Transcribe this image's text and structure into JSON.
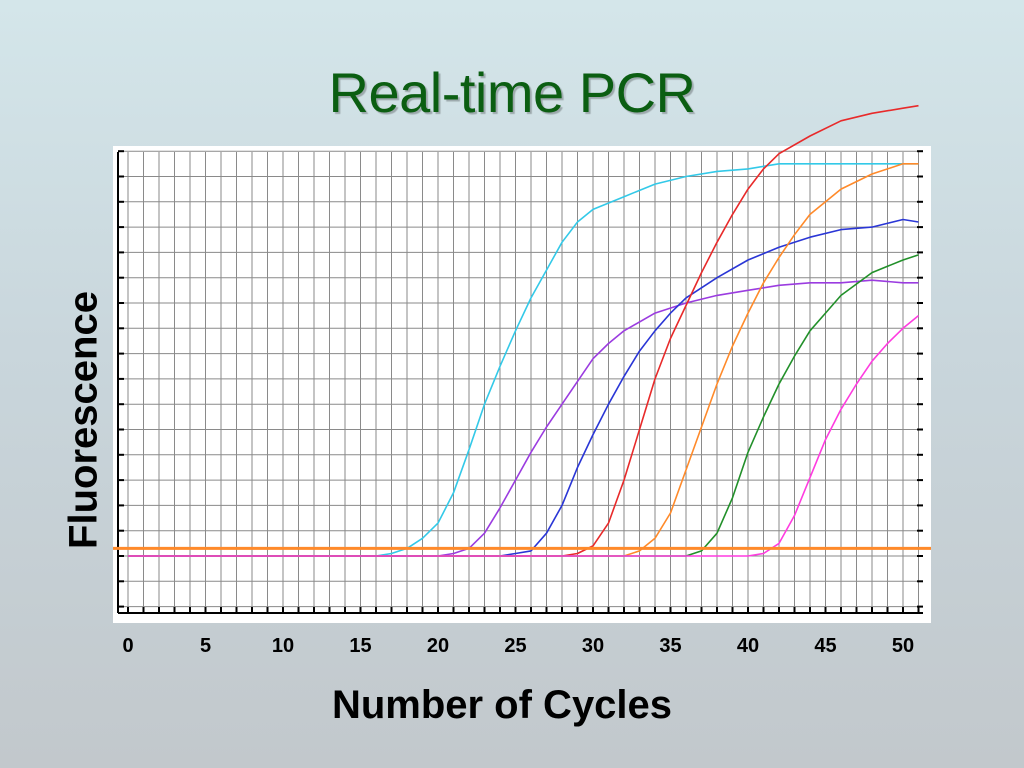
{
  "slide": {
    "title": "Real-time PCR"
  },
  "chart_data": {
    "type": "line",
    "xlabel": "Number of Cycles",
    "ylabel": "Fluorescence",
    "xticks": [
      0,
      5,
      10,
      15,
      20,
      25,
      30,
      35,
      40,
      45,
      50
    ],
    "xlim": [
      0,
      52
    ],
    "ylim": [
      -2,
      17
    ],
    "grid": true,
    "threshold": {
      "y": 0.3,
      "color": "#ff8a2a"
    },
    "series": [
      {
        "color": "#33c9e8",
        "points": [
          [
            0,
            0
          ],
          [
            16,
            0
          ],
          [
            17,
            0.1
          ],
          [
            18,
            0.3
          ],
          [
            19,
            0.7
          ],
          [
            20,
            1.3
          ],
          [
            21,
            2.5
          ],
          [
            22,
            4.2
          ],
          [
            23,
            6.0
          ],
          [
            24,
            7.5
          ],
          [
            25,
            8.9
          ],
          [
            26,
            10.2
          ],
          [
            27,
            11.3
          ],
          [
            28,
            12.4
          ],
          [
            29,
            13.2
          ],
          [
            30,
            13.7
          ],
          [
            32,
            14.2
          ],
          [
            34,
            14.7
          ],
          [
            36,
            15.0
          ],
          [
            38,
            15.2
          ],
          [
            40,
            15.3
          ],
          [
            42,
            15.5
          ],
          [
            44,
            15.5
          ],
          [
            46,
            15.5
          ],
          [
            48,
            15.5
          ],
          [
            50,
            15.5
          ],
          [
            51,
            15.5
          ]
        ]
      },
      {
        "color": "#9b3ce0",
        "points": [
          [
            0,
            0
          ],
          [
            20,
            0
          ],
          [
            21,
            0.1
          ],
          [
            22,
            0.3
          ],
          [
            23,
            0.9
          ],
          [
            24,
            1.9
          ],
          [
            25,
            3.0
          ],
          [
            26,
            4.1
          ],
          [
            27,
            5.1
          ],
          [
            28,
            6.0
          ],
          [
            29,
            6.9
          ],
          [
            30,
            7.8
          ],
          [
            31,
            8.4
          ],
          [
            32,
            8.9
          ],
          [
            34,
            9.6
          ],
          [
            36,
            10.0
          ],
          [
            38,
            10.3
          ],
          [
            40,
            10.5
          ],
          [
            42,
            10.7
          ],
          [
            44,
            10.8
          ],
          [
            46,
            10.8
          ],
          [
            48,
            10.9
          ],
          [
            50,
            10.8
          ],
          [
            51,
            10.8
          ]
        ]
      },
      {
        "color": "#2a36d6",
        "points": [
          [
            0,
            0
          ],
          [
            24,
            0
          ],
          [
            25,
            0.1
          ],
          [
            26,
            0.2
          ],
          [
            27,
            0.9
          ],
          [
            28,
            2.0
          ],
          [
            29,
            3.5
          ],
          [
            30,
            4.8
          ],
          [
            31,
            6.0
          ],
          [
            32,
            7.1
          ],
          [
            33,
            8.1
          ],
          [
            34,
            8.9
          ],
          [
            35,
            9.6
          ],
          [
            36,
            10.2
          ],
          [
            38,
            11.0
          ],
          [
            40,
            11.7
          ],
          [
            42,
            12.2
          ],
          [
            44,
            12.6
          ],
          [
            46,
            12.9
          ],
          [
            48,
            13.0
          ],
          [
            50,
            13.3
          ],
          [
            51,
            13.2
          ]
        ]
      },
      {
        "color": "#e82a2a",
        "points": [
          [
            0,
            0
          ],
          [
            28,
            0
          ],
          [
            29,
            0.1
          ],
          [
            30,
            0.4
          ],
          [
            31,
            1.3
          ],
          [
            32,
            3.0
          ],
          [
            33,
            5.0
          ],
          [
            34,
            7.0
          ],
          [
            35,
            8.6
          ],
          [
            36,
            9.9
          ],
          [
            37,
            11.2
          ],
          [
            38,
            12.4
          ],
          [
            39,
            13.5
          ],
          [
            40,
            14.5
          ],
          [
            41,
            15.3
          ],
          [
            42,
            15.9
          ],
          [
            44,
            16.6
          ],
          [
            46,
            17.2
          ],
          [
            48,
            17.5
          ],
          [
            50,
            17.7
          ],
          [
            51,
            17.8
          ]
        ]
      },
      {
        "color": "#ff8a2a",
        "points": [
          [
            0,
            0
          ],
          [
            32,
            0
          ],
          [
            33,
            0.2
          ],
          [
            34,
            0.7
          ],
          [
            35,
            1.7
          ],
          [
            36,
            3.4
          ],
          [
            37,
            5.1
          ],
          [
            38,
            6.8
          ],
          [
            39,
            8.3
          ],
          [
            40,
            9.6
          ],
          [
            41,
            10.8
          ],
          [
            42,
            11.8
          ],
          [
            43,
            12.7
          ],
          [
            44,
            13.5
          ],
          [
            46,
            14.5
          ],
          [
            48,
            15.1
          ],
          [
            50,
            15.5
          ],
          [
            51,
            15.5
          ]
        ]
      },
      {
        "color": "#22902a",
        "points": [
          [
            0,
            0
          ],
          [
            36,
            0
          ],
          [
            37,
            0.2
          ],
          [
            38,
            0.9
          ],
          [
            39,
            2.3
          ],
          [
            40,
            4.1
          ],
          [
            41,
            5.5
          ],
          [
            42,
            6.8
          ],
          [
            43,
            7.9
          ],
          [
            44,
            8.9
          ],
          [
            45,
            9.6
          ],
          [
            46,
            10.3
          ],
          [
            48,
            11.2
          ],
          [
            50,
            11.7
          ],
          [
            51,
            11.9
          ]
        ]
      },
      {
        "color": "#ff3ce0",
        "points": [
          [
            0,
            0
          ],
          [
            40,
            0
          ],
          [
            41,
            0.1
          ],
          [
            42,
            0.5
          ],
          [
            43,
            1.6
          ],
          [
            44,
            3.1
          ],
          [
            45,
            4.6
          ],
          [
            46,
            5.8
          ],
          [
            47,
            6.8
          ],
          [
            48,
            7.7
          ],
          [
            49,
            8.4
          ],
          [
            50,
            9.0
          ],
          [
            51,
            9.5
          ]
        ]
      }
    ]
  }
}
